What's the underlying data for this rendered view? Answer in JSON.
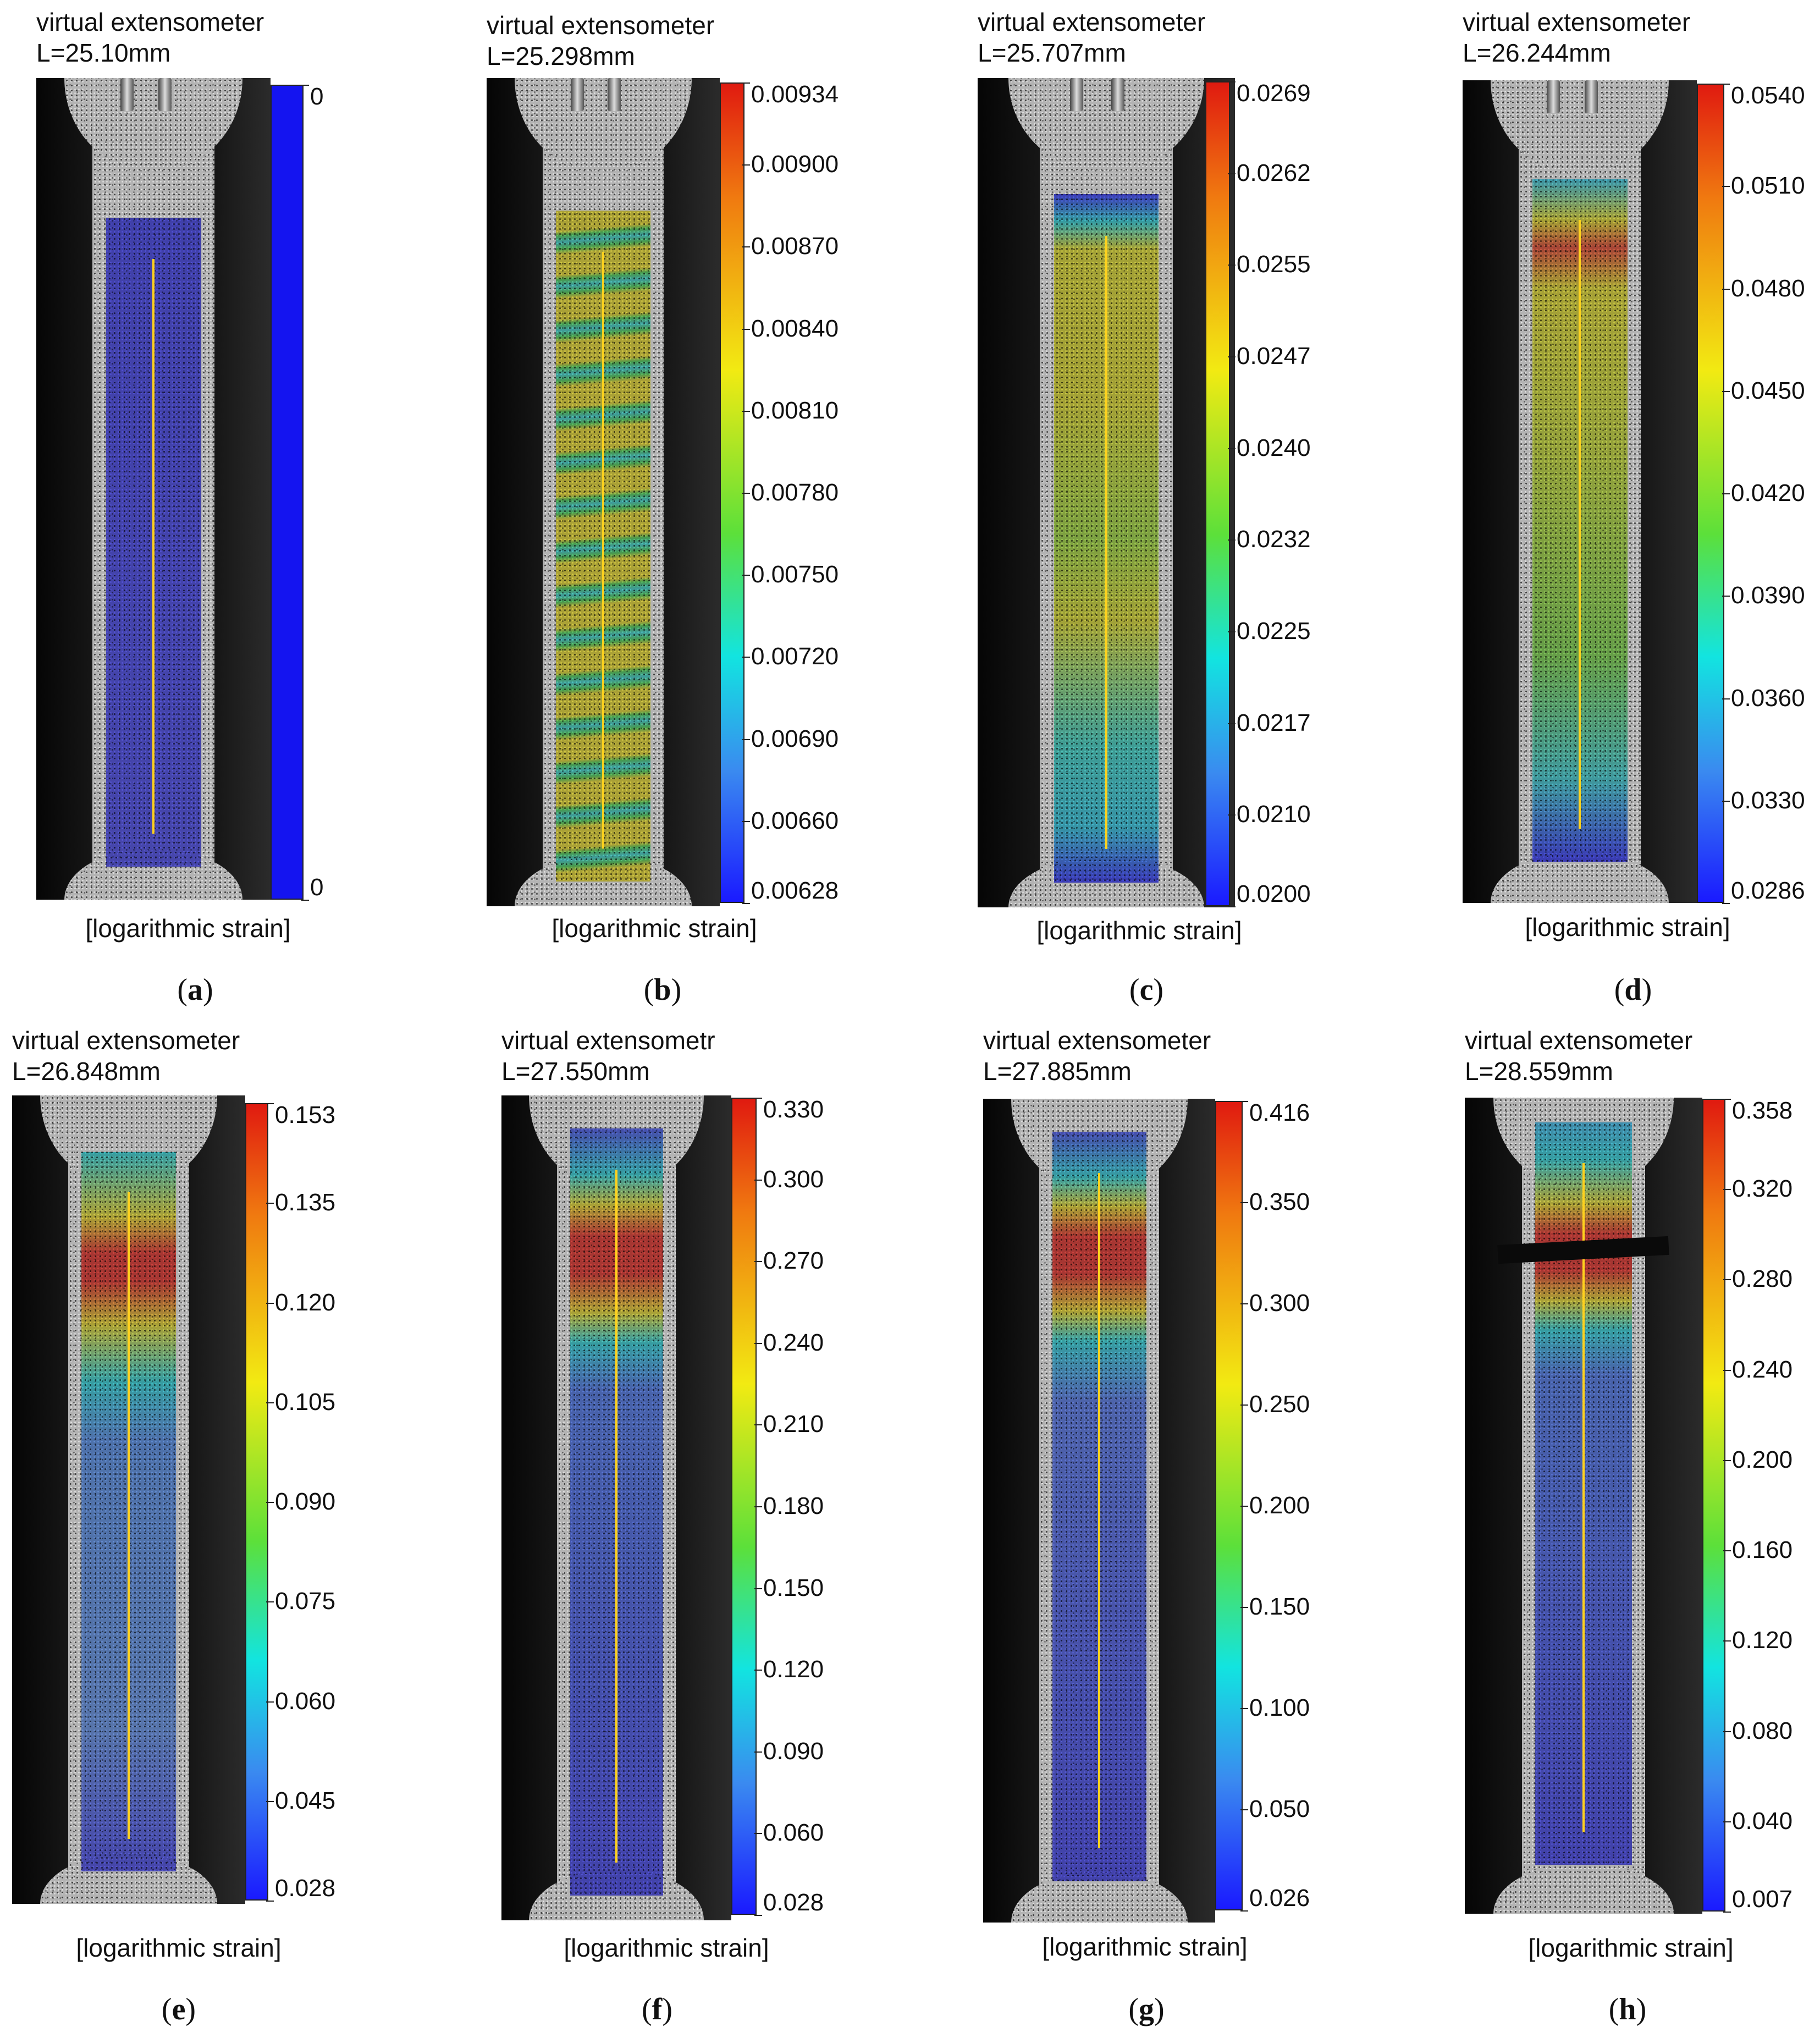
{
  "panels": [
    {
      "letter": "a",
      "title_line1": "virtual extensometer",
      "title_line2": "L=25.10mm",
      "ticks": [
        "0",
        "0"
      ],
      "unit_label": "[logarithmic strain]",
      "colormap": "uniform"
    },
    {
      "letter": "b",
      "title_line1": "virtual extensometer",
      "title_line2": "L=25.298mm",
      "ticks": [
        "0.00934",
        "0.00900",
        "0.00870",
        "0.00840",
        "0.00810",
        "0.00780",
        "0.00750",
        "0.00720",
        "0.00690",
        "0.00660",
        "0.00628"
      ],
      "unit_label": "[logarithmic strain]",
      "colormap": "jet"
    },
    {
      "letter": "c",
      "title_line1": "virtual extensometer",
      "title_line2": "L=25.707mm",
      "ticks": [
        "0.0269",
        "0.0262",
        "0.0255",
        "0.0247",
        "0.0240",
        "0.0232",
        "0.0225",
        "0.0217",
        "0.0210",
        "0.0200"
      ],
      "unit_label": "[logarithmic strain]",
      "colormap": "jet"
    },
    {
      "letter": "d",
      "title_line1": "virtual extensometer",
      "title_line2": "L=26.244mm",
      "ticks": [
        "0.0540",
        "0.0510",
        "0.0480",
        "0.0450",
        "0.0420",
        "0.0390",
        "0.0360",
        "0.0330",
        "0.0286"
      ],
      "unit_label": "[logarithmic strain]",
      "colormap": "jet"
    },
    {
      "letter": "e",
      "title_line1": "virtual extensometer",
      "title_line2": "L=26.848mm",
      "ticks": [
        "0.153",
        "0.135",
        "0.120",
        "0.105",
        "0.090",
        "0.075",
        "0.060",
        "0.045",
        "0.028"
      ],
      "unit_label": "[logarithmic strain]",
      "colormap": "jet"
    },
    {
      "letter": "f",
      "title_line1": "virtual extensometr",
      "title_line2": "L=27.550mm",
      "ticks": [
        "0.330",
        "0.300",
        "0.270",
        "0.240",
        "0.210",
        "0.180",
        "0.150",
        "0.120",
        "0.090",
        "0.060",
        "0.028"
      ],
      "unit_label": "[logarithmic strain]",
      "colormap": "jet"
    },
    {
      "letter": "g",
      "title_line1": "virtual extensometer",
      "title_line2": "L=27.885mm",
      "ticks": [
        "0.416",
        "0.350",
        "0.300",
        "0.250",
        "0.200",
        "0.150",
        "0.100",
        "0.050",
        "0.026"
      ],
      "unit_label": "[logarithmic strain]",
      "colormap": "jet"
    },
    {
      "letter": "h",
      "title_line1": "virtual extensometer",
      "title_line2": "L=28.559mm",
      "ticks": [
        "0.358",
        "0.320",
        "0.280",
        "0.240",
        "0.200",
        "0.160",
        "0.120",
        "0.080",
        "0.040",
        "0.007"
      ],
      "unit_label": "[logarithmic strain]",
      "colormap": "jet"
    }
  ],
  "colors": {
    "jet_red": "#e8231a",
    "jet_yellow": "#f2ea12",
    "jet_green": "#3fd24a",
    "jet_cyan": "#14e8e8",
    "jet_blue": "#1a1aff",
    "uniform_blue": "#1414f0",
    "extensometer_line": "#ffd21e"
  }
}
